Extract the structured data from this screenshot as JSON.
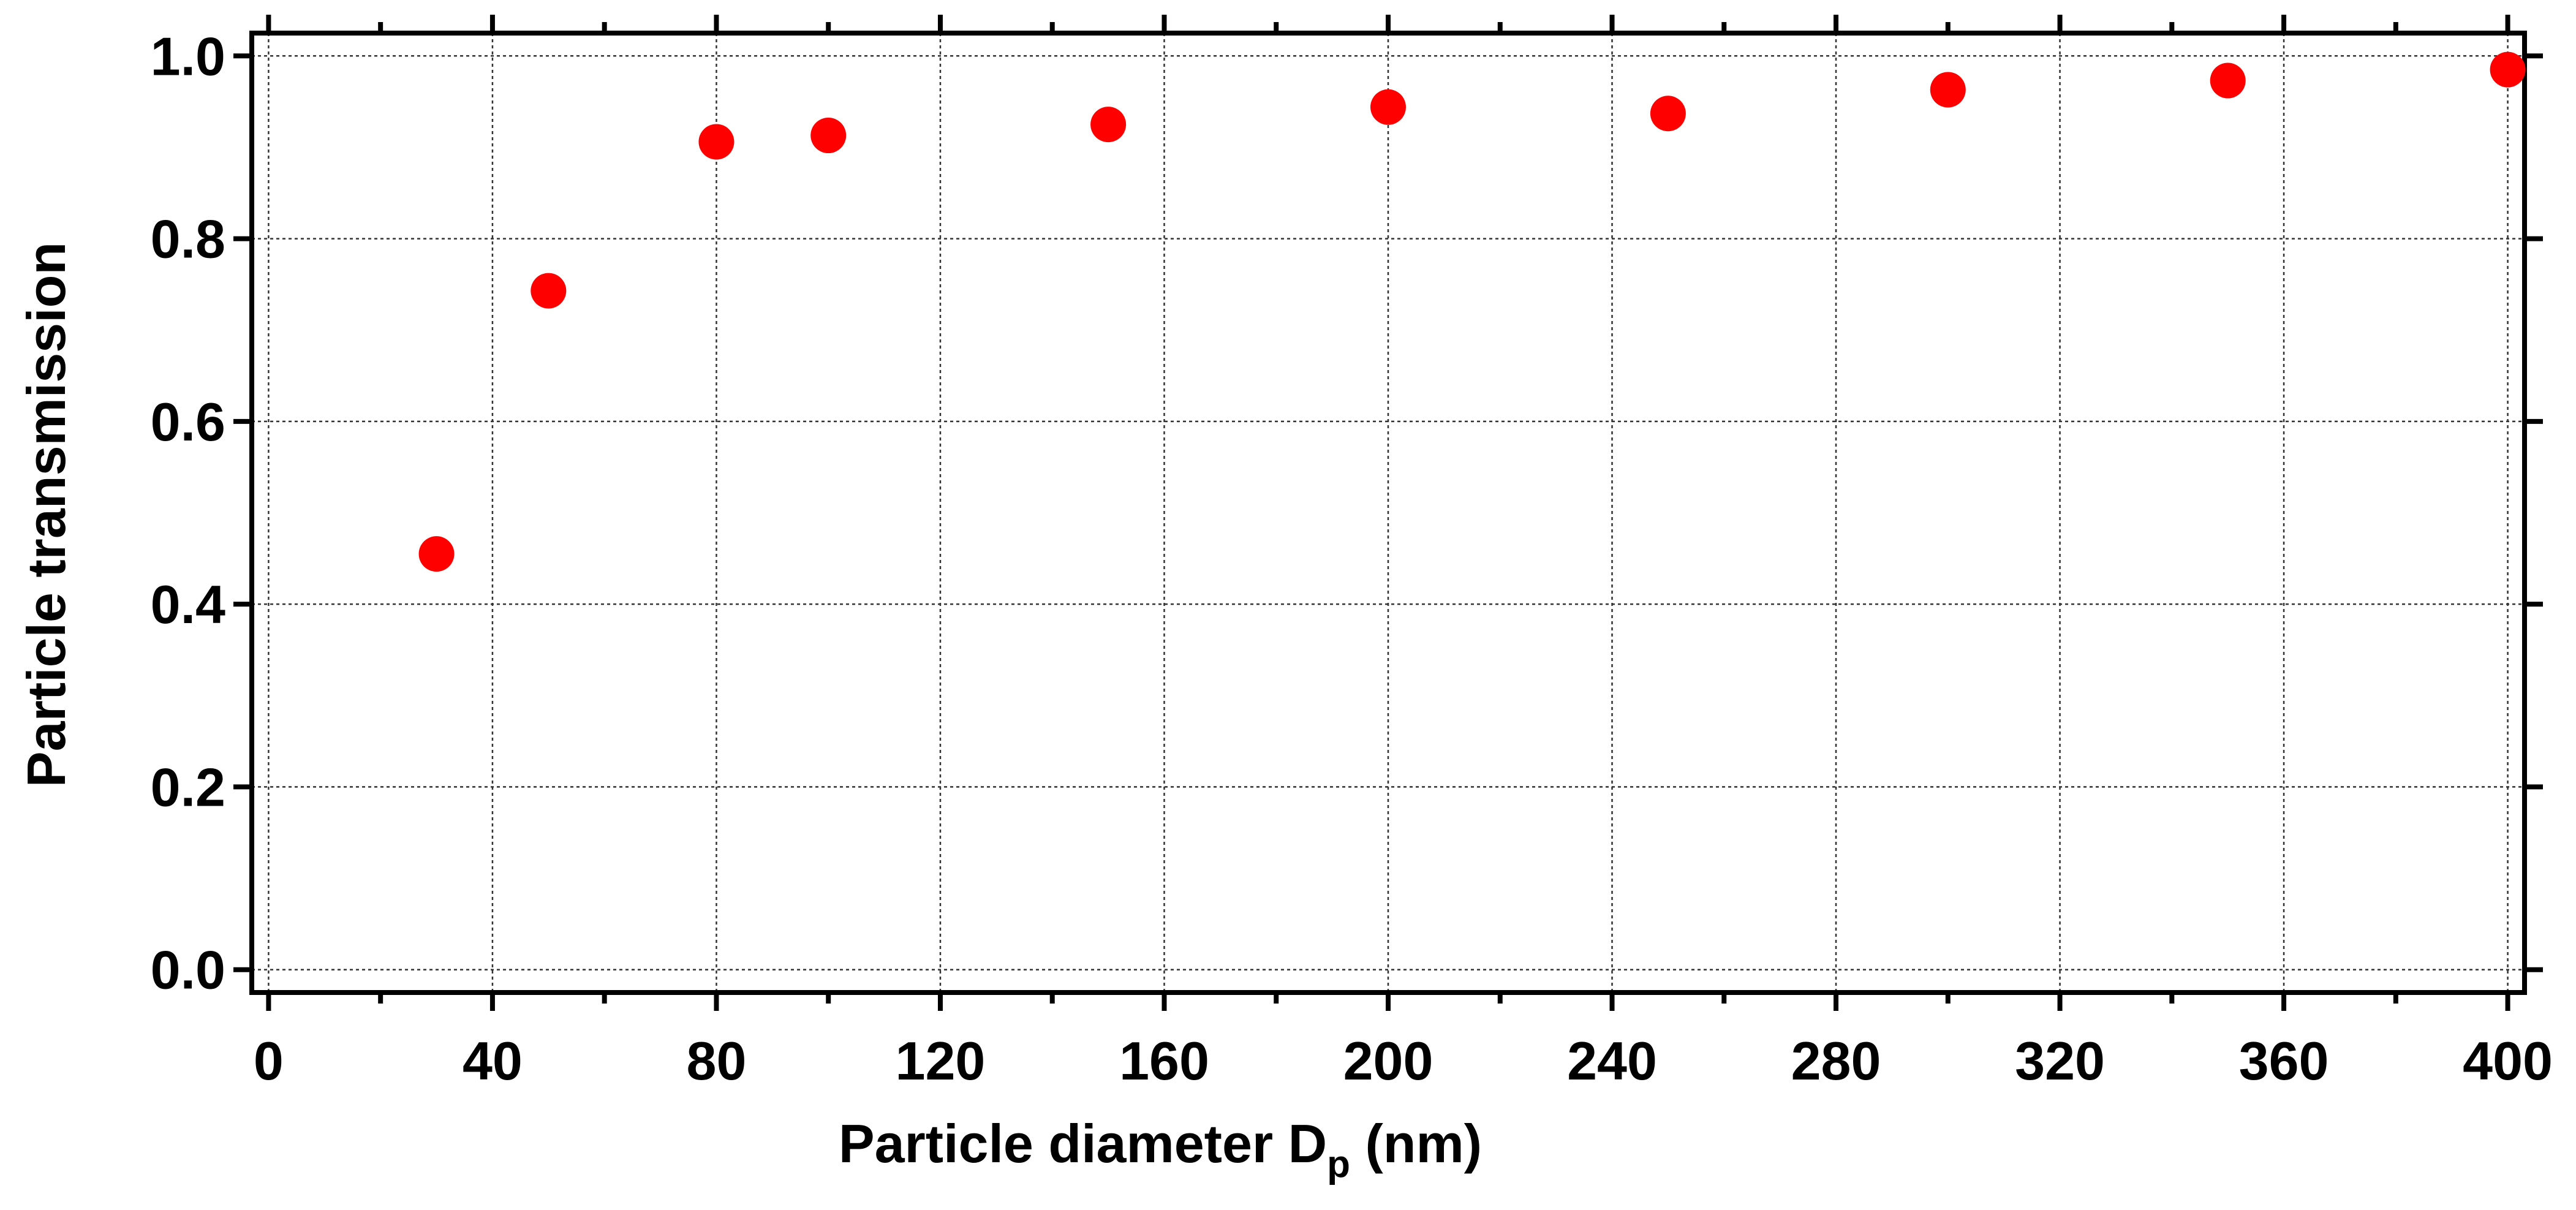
{
  "chart_data": {
    "type": "scatter",
    "title": "",
    "xlabel": "Particle diameter D",
    "xlabel_subscript": "p",
    "xlabel_suffix": " (nm)",
    "ylabel": "Particle transmission",
    "xlim": [
      -3,
      403
    ],
    "ylim": [
      -0.025,
      1.025
    ],
    "xticks": [
      0,
      40,
      80,
      120,
      160,
      200,
      240,
      280,
      320,
      360,
      400
    ],
    "xtick_labels": [
      "0",
      "40",
      "80",
      "120",
      "160",
      "200",
      "240",
      "280",
      "320",
      "360",
      "400"
    ],
    "xminor": [
      20,
      60,
      100,
      140,
      180,
      220,
      260,
      300,
      340,
      380
    ],
    "yticks": [
      0.0,
      0.2,
      0.4,
      0.6,
      0.8,
      1.0
    ],
    "ytick_labels": [
      "0.0",
      "0.2",
      "0.4",
      "0.6",
      "0.8",
      "1.0"
    ],
    "grid": true,
    "legend": "none",
    "series": [
      {
        "color": "#ff0000",
        "marker": "circle",
        "x": [
          30,
          50,
          80,
          100,
          150,
          200,
          250,
          300,
          350,
          400
        ],
        "y": [
          0.455,
          0.743,
          0.906,
          0.913,
          0.925,
          0.944,
          0.937,
          0.963,
          0.973,
          0.985
        ]
      }
    ]
  }
}
